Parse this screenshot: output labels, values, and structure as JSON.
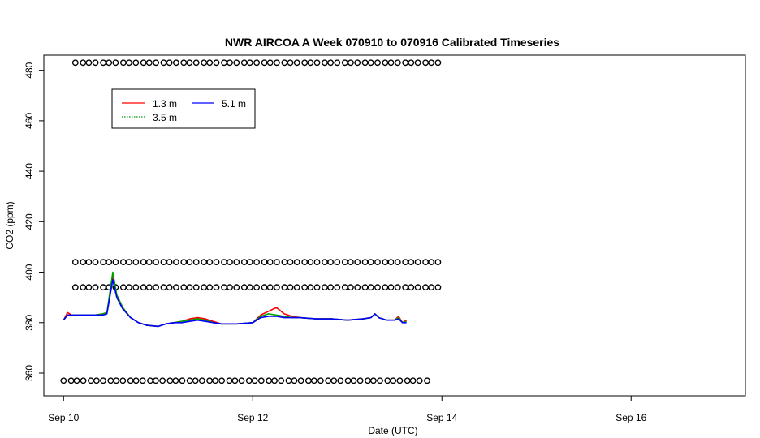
{
  "chart_data": {
    "type": "line",
    "title": "NWR AIRCOA A  Week 070910 to 070916  Calibrated Timeseries",
    "xlabel": "Date (UTC)",
    "ylabel": "CO2 (ppm)",
    "xlim": [
      "2007-09-09T19:00",
      "2007-09-17T05:00"
    ],
    "ylim": [
      351,
      486
    ],
    "x_ticks": [
      {
        "x": "2007-09-10T00:00",
        "label": "Sep 10"
      },
      {
        "x": "2007-09-12T00:00",
        "label": "Sep 12"
      },
      {
        "x": "2007-09-14T00:00",
        "label": "Sep 14"
      },
      {
        "x": "2007-09-16T00:00",
        "label": "Sep 16"
      }
    ],
    "y_ticks": [
      360,
      380,
      400,
      420,
      440,
      460,
      480
    ],
    "grid": false,
    "legend": {
      "position": "top-left",
      "entries": [
        {
          "label": "1.3 m",
          "color": "#ff0000"
        },
        {
          "label": "3.5 m",
          "color": "#00a000"
        },
        {
          "label": "5.1 m",
          "color": "#0000ff"
        }
      ]
    },
    "series": [
      {
        "name": "1.3 m",
        "color": "#ff0000",
        "points": [
          [
            "2007-09-10T00:00",
            381
          ],
          [
            "2007-09-10T01:00",
            384
          ],
          [
            "2007-09-10T02:00",
            383
          ],
          [
            "2007-09-10T04:00",
            383
          ],
          [
            "2007-09-10T06:00",
            383
          ],
          [
            "2007-09-10T08:00",
            383
          ],
          [
            "2007-09-10T10:00",
            383.5
          ],
          [
            "2007-09-10T11:00",
            384
          ],
          [
            "2007-09-10T12:30",
            398
          ],
          [
            "2007-09-10T13:30",
            391
          ],
          [
            "2007-09-10T15:00",
            386
          ],
          [
            "2007-09-10T17:00",
            382
          ],
          [
            "2007-09-10T19:00",
            380
          ],
          [
            "2007-09-10T21:00",
            379
          ],
          [
            "2007-09-11T00:00",
            378.5
          ],
          [
            "2007-09-11T02:00",
            379.5
          ],
          [
            "2007-09-11T04:00",
            380
          ],
          [
            "2007-09-11T06:00",
            380.5
          ],
          [
            "2007-09-11T08:00",
            381.5
          ],
          [
            "2007-09-11T10:00",
            382
          ],
          [
            "2007-09-11T12:00",
            381.5
          ],
          [
            "2007-09-11T14:00",
            380.5
          ],
          [
            "2007-09-11T16:00",
            379.5
          ],
          [
            "2007-09-11T20:00",
            379.5
          ],
          [
            "2007-09-12T00:00",
            380
          ],
          [
            "2007-09-12T02:00",
            383
          ],
          [
            "2007-09-12T04:00",
            384.5
          ],
          [
            "2007-09-12T06:00",
            386
          ],
          [
            "2007-09-12T08:00",
            383.5
          ],
          [
            "2007-09-12T10:00",
            382.5
          ],
          [
            "2007-09-12T12:00",
            382
          ],
          [
            "2007-09-12T16:00",
            381.5
          ],
          [
            "2007-09-12T20:00",
            381.5
          ],
          [
            "2007-09-13T00:00",
            381
          ],
          [
            "2007-09-13T04:00",
            381.5
          ],
          [
            "2007-09-13T06:00",
            382
          ],
          [
            "2007-09-13T07:00",
            383.5
          ],
          [
            "2007-09-13T08:00",
            382
          ],
          [
            "2007-09-13T10:00",
            381
          ],
          [
            "2007-09-13T12:00",
            381
          ],
          [
            "2007-09-13T13:00",
            382.5
          ],
          [
            "2007-09-13T14:00",
            380
          ],
          [
            "2007-09-13T15:00",
            381
          ]
        ]
      },
      {
        "name": "3.5 m",
        "color": "#00a000",
        "points": [
          [
            "2007-09-10T00:00",
            381
          ],
          [
            "2007-09-10T01:00",
            383
          ],
          [
            "2007-09-10T02:00",
            383
          ],
          [
            "2007-09-10T04:00",
            383
          ],
          [
            "2007-09-10T06:00",
            383
          ],
          [
            "2007-09-10T08:00",
            383
          ],
          [
            "2007-09-10T10:00",
            383.5
          ],
          [
            "2007-09-10T11:00",
            384
          ],
          [
            "2007-09-10T12:30",
            400
          ],
          [
            "2007-09-10T13:30",
            391
          ],
          [
            "2007-09-10T15:00",
            386
          ],
          [
            "2007-09-10T17:00",
            382
          ],
          [
            "2007-09-10T19:00",
            380
          ],
          [
            "2007-09-10T21:00",
            379
          ],
          [
            "2007-09-11T00:00",
            378.5
          ],
          [
            "2007-09-11T02:00",
            379.5
          ],
          [
            "2007-09-11T04:00",
            380
          ],
          [
            "2007-09-11T06:00",
            380.5
          ],
          [
            "2007-09-11T08:00",
            381
          ],
          [
            "2007-09-11T10:00",
            381.5
          ],
          [
            "2007-09-11T12:00",
            381
          ],
          [
            "2007-09-11T14:00",
            380
          ],
          [
            "2007-09-11T16:00",
            379.5
          ],
          [
            "2007-09-11T20:00",
            379.5
          ],
          [
            "2007-09-12T00:00",
            380
          ],
          [
            "2007-09-12T02:00",
            382.5
          ],
          [
            "2007-09-12T04:00",
            383.5
          ],
          [
            "2007-09-12T06:00",
            383
          ],
          [
            "2007-09-12T08:00",
            382.5
          ],
          [
            "2007-09-12T10:00",
            382
          ],
          [
            "2007-09-12T12:00",
            382
          ],
          [
            "2007-09-12T16:00",
            381.5
          ],
          [
            "2007-09-12T20:00",
            381.5
          ],
          [
            "2007-09-13T00:00",
            381
          ],
          [
            "2007-09-13T04:00",
            381.5
          ],
          [
            "2007-09-13T06:00",
            382
          ],
          [
            "2007-09-13T07:00",
            383.5
          ],
          [
            "2007-09-13T08:00",
            382
          ],
          [
            "2007-09-13T10:00",
            381
          ],
          [
            "2007-09-13T12:00",
            381
          ],
          [
            "2007-09-13T13:00",
            382
          ],
          [
            "2007-09-13T14:00",
            380
          ],
          [
            "2007-09-13T15:00",
            380.5
          ]
        ]
      },
      {
        "name": "5.1 m",
        "color": "#0000ff",
        "points": [
          [
            "2007-09-10T00:00",
            381
          ],
          [
            "2007-09-10T01:00",
            383
          ],
          [
            "2007-09-10T02:00",
            383
          ],
          [
            "2007-09-10T04:00",
            383
          ],
          [
            "2007-09-10T06:00",
            383
          ],
          [
            "2007-09-10T08:00",
            383
          ],
          [
            "2007-09-10T10:00",
            383
          ],
          [
            "2007-09-10T11:00",
            383.5
          ],
          [
            "2007-09-10T12:30",
            397
          ],
          [
            "2007-09-10T13:30",
            390
          ],
          [
            "2007-09-10T15:00",
            385.5
          ],
          [
            "2007-09-10T17:00",
            382
          ],
          [
            "2007-09-10T19:00",
            380
          ],
          [
            "2007-09-10T21:00",
            379
          ],
          [
            "2007-09-11T00:00",
            378.5
          ],
          [
            "2007-09-11T02:00",
            379.5
          ],
          [
            "2007-09-11T04:00",
            380
          ],
          [
            "2007-09-11T06:00",
            380
          ],
          [
            "2007-09-11T08:00",
            380.5
          ],
          [
            "2007-09-11T10:00",
            381
          ],
          [
            "2007-09-11T12:00",
            380.5
          ],
          [
            "2007-09-11T14:00",
            380
          ],
          [
            "2007-09-11T16:00",
            379.5
          ],
          [
            "2007-09-11T20:00",
            379.5
          ],
          [
            "2007-09-12T00:00",
            380
          ],
          [
            "2007-09-12T02:00",
            382
          ],
          [
            "2007-09-12T04:00",
            382.5
          ],
          [
            "2007-09-12T06:00",
            382.5
          ],
          [
            "2007-09-12T08:00",
            382
          ],
          [
            "2007-09-12T10:00",
            382
          ],
          [
            "2007-09-12T12:00",
            382
          ],
          [
            "2007-09-12T16:00",
            381.5
          ],
          [
            "2007-09-12T20:00",
            381.5
          ],
          [
            "2007-09-13T00:00",
            381
          ],
          [
            "2007-09-13T04:00",
            381.5
          ],
          [
            "2007-09-13T06:00",
            382
          ],
          [
            "2007-09-13T07:00",
            383.5
          ],
          [
            "2007-09-13T08:00",
            382
          ],
          [
            "2007-09-13T10:00",
            381
          ],
          [
            "2007-09-13T12:00",
            381
          ],
          [
            "2007-09-13T13:00",
            381.5
          ],
          [
            "2007-09-13T14:00",
            380
          ],
          [
            "2007-09-13T15:00",
            380
          ]
        ]
      }
    ],
    "marker_rows": [
      {
        "y": 483,
        "x_start": "2007-09-10T03:00",
        "x_end": "2007-09-13T23:00",
        "count": 55
      },
      {
        "y": 404,
        "x_start": "2007-09-10T03:00",
        "x_end": "2007-09-13T23:00",
        "count": 55
      },
      {
        "y": 394,
        "x_start": "2007-09-10T03:00",
        "x_end": "2007-09-13T23:00",
        "count": 55
      },
      {
        "y": 357,
        "x_start": "2007-09-10T00:00",
        "x_end": "2007-09-13T20:00",
        "count": 56
      }
    ]
  }
}
